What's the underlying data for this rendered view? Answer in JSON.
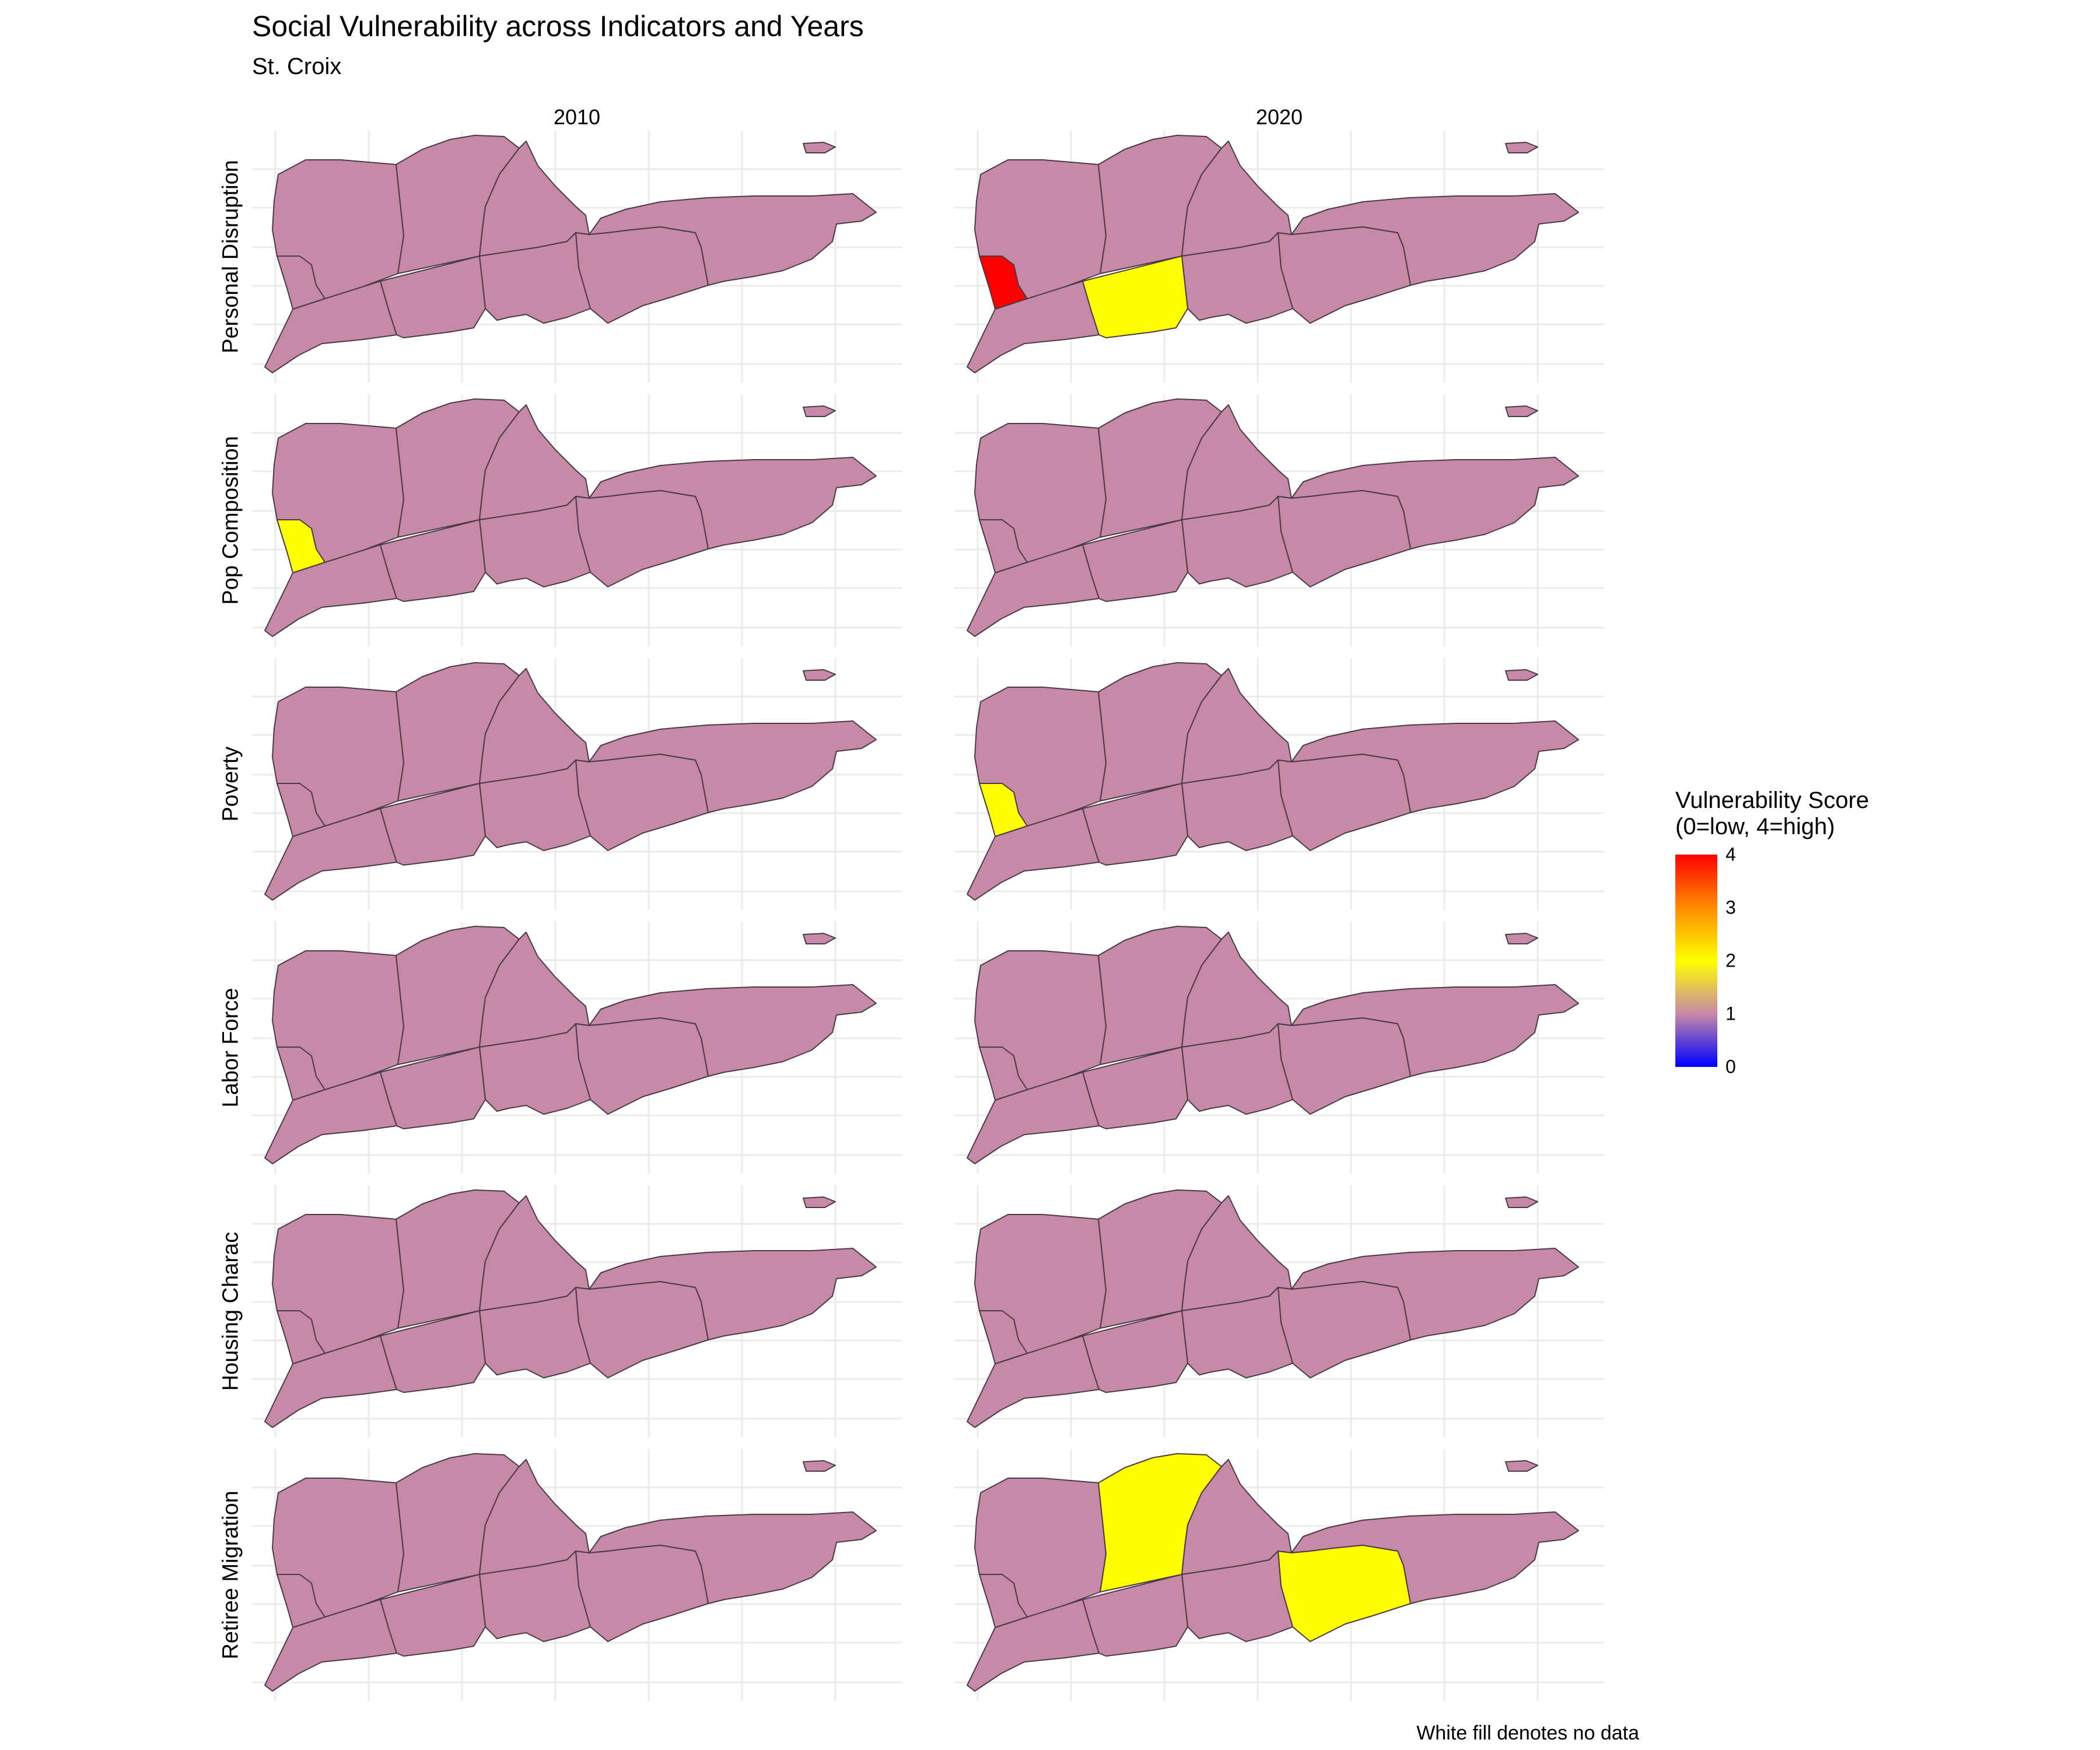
{
  "title": "Social Vulnerability across Indicators and Years",
  "subtitle": "St. Croix",
  "caption": "White fill denotes no data",
  "colors": {
    "score_1": "#c789a8",
    "score_2": "#ffff00",
    "score_4": "#ff0000",
    "grid": "#ebebeb",
    "border": "#4a3a45"
  },
  "legend": {
    "title_line1": "Vulnerability Score",
    "title_line2": "(0=low, 4=high)",
    "ticks": [
      "4",
      "3",
      "2",
      "1",
      "0"
    ]
  },
  "chart_data": {
    "type": "choropleth map (small multiples)",
    "columns": [
      "2010",
      "2020"
    ],
    "rows": [
      "Personal Disruption",
      "Pop Composition",
      "Poverty",
      "Labor Force",
      "Housing Charac",
      "Retiree Migration"
    ],
    "scale": {
      "min": 0,
      "max": 4
    },
    "panels": [
      {
        "row": "Personal Disruption",
        "year": "2010",
        "scores": {
          "A": 1,
          "B": 1,
          "C": 1,
          "D": 1,
          "E": 1,
          "F": 1,
          "G": 1,
          "H": 1,
          "I": 1,
          "J": 1
        }
      },
      {
        "row": "Personal Disruption",
        "year": "2020",
        "scores": {
          "A": 1,
          "B": 1,
          "C": 1,
          "D": 1,
          "E": 1,
          "F": 1,
          "G": 4,
          "H": 1,
          "I": 2,
          "J": 1
        }
      },
      {
        "row": "Pop Composition",
        "year": "2010",
        "scores": {
          "A": 1,
          "B": 1,
          "C": 1,
          "D": 1,
          "E": 1,
          "F": 1,
          "G": 2,
          "H": 1,
          "I": 1,
          "J": 1
        }
      },
      {
        "row": "Pop Composition",
        "year": "2020",
        "scores": {
          "A": 1,
          "B": 1,
          "C": 1,
          "D": 1,
          "E": 1,
          "F": 1,
          "G": 1,
          "H": 1,
          "I": 1,
          "J": 1
        }
      },
      {
        "row": "Poverty",
        "year": "2010",
        "scores": {
          "A": 1,
          "B": 1,
          "C": 1,
          "D": 1,
          "E": 1,
          "F": 1,
          "G": 1,
          "H": 1,
          "I": 1,
          "J": 1
        }
      },
      {
        "row": "Poverty",
        "year": "2020",
        "scores": {
          "A": 1,
          "B": 1,
          "C": 1,
          "D": 1,
          "E": 1,
          "F": 1,
          "G": 2,
          "H": 1,
          "I": 1,
          "J": 1
        }
      },
      {
        "row": "Labor Force",
        "year": "2010",
        "scores": {
          "A": 1,
          "B": 1,
          "C": 1,
          "D": 1,
          "E": 1,
          "F": 1,
          "G": 1,
          "H": 1,
          "I": 1,
          "J": 1
        }
      },
      {
        "row": "Labor Force",
        "year": "2020",
        "scores": {
          "A": 1,
          "B": 1,
          "C": 1,
          "D": 1,
          "E": 1,
          "F": 1,
          "G": 1,
          "H": 1,
          "I": 1,
          "J": 1
        }
      },
      {
        "row": "Housing Charac",
        "year": "2010",
        "scores": {
          "A": 1,
          "B": 1,
          "C": 1,
          "D": 1,
          "E": 1,
          "F": 1,
          "G": 1,
          "H": 1,
          "I": 1,
          "J": 1
        }
      },
      {
        "row": "Housing Charac",
        "year": "2020",
        "scores": {
          "A": 1,
          "B": 1,
          "C": 1,
          "D": 1,
          "E": 1,
          "F": 1,
          "G": 1,
          "H": 1,
          "I": 1,
          "J": 1
        }
      },
      {
        "row": "Retiree Migration",
        "year": "2010",
        "scores": {
          "A": 1,
          "B": 1,
          "C": 1,
          "D": 1,
          "E": 1,
          "F": 1,
          "G": 1,
          "H": 1,
          "I": 1,
          "J": 1
        }
      },
      {
        "row": "Retiree Migration",
        "year": "2020",
        "scores": {
          "A": 1,
          "B": 2,
          "C": 1,
          "D": 1,
          "E": 2,
          "F": 1,
          "G": 1,
          "H": 1,
          "I": 1,
          "J": 1
        }
      }
    ]
  }
}
